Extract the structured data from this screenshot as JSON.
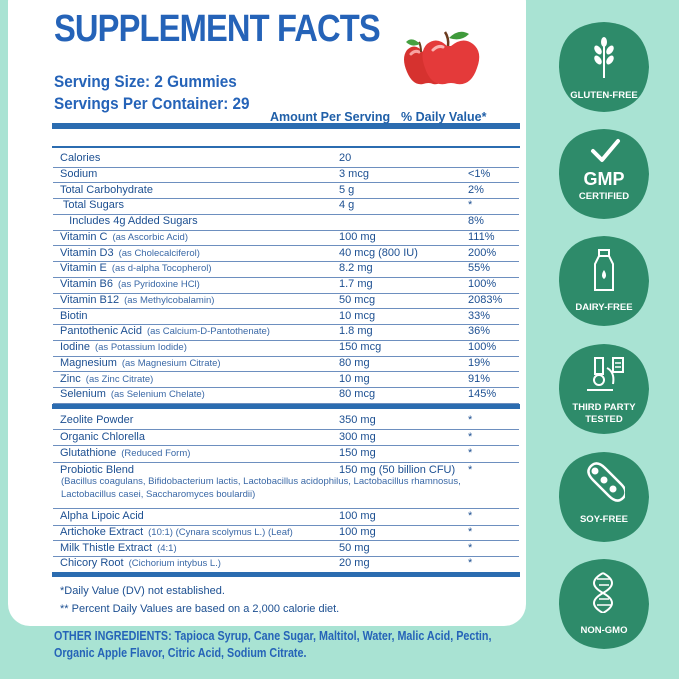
{
  "header": {
    "title": "SUPPLEMENT FACTS",
    "serving_size": "Serving Size: 2 Gummies",
    "servings_per_container": "Servings Per Container: 29"
  },
  "columns": {
    "amount": "Amount Per Serving",
    "dv": "% Daily Value*"
  },
  "rows": [
    {
      "name": "Calories",
      "qualifier": "",
      "amount": "20",
      "dv": ""
    },
    {
      "name": "Sodium",
      "qualifier": "",
      "amount": "3 mcg",
      "dv": "<1%"
    },
    {
      "name": "Total Carbohydrate",
      "qualifier": "",
      "amount": "5 g",
      "dv": "2%"
    },
    {
      "name": " Total Sugars",
      "qualifier": "",
      "amount": "4 g",
      "dv": "*"
    },
    {
      "name": "   Includes 4g Added Sugars",
      "qualifier": "",
      "amount": "",
      "dv": "8%"
    },
    {
      "name": "Vitamin C",
      "qualifier": "(as Ascorbic Acid)",
      "amount": "100 mg",
      "dv": "111%"
    },
    {
      "name": "Vitamin D3",
      "qualifier": "(as Cholecalciferol)",
      "amount": "40 mcg (800 IU)",
      "dv": "200%"
    },
    {
      "name": "Vitamin E",
      "qualifier": "(as d-alpha Tocopherol)",
      "amount": "8.2 mg",
      "dv": "55%"
    },
    {
      "name": "Vitamin B6",
      "qualifier": "(as Pyridoxine HCl)",
      "amount": "1.7 mg",
      "dv": "100%"
    },
    {
      "name": "Vitamin B12",
      "qualifier": "(as Methylcobalamin)",
      "amount": "50 mcg",
      "dv": "2083%"
    },
    {
      "name": "Biotin",
      "qualifier": "",
      "amount": "10 mcg",
      "dv": "33%"
    },
    {
      "name": "Pantothenic Acid",
      "qualifier": "(as Calcium-D-Pantothenate)",
      "amount": "1.8 mg",
      "dv": "36%"
    },
    {
      "name": "Iodine",
      "qualifier": "(as Potassium Iodide)",
      "amount": "150 mcg",
      "dv": "100%"
    },
    {
      "name": "Magnesium",
      "qualifier": "(as Magnesium Citrate)",
      "amount": "80 mg",
      "dv": "19%"
    },
    {
      "name": "Zinc",
      "qualifier": "(as Zinc Citrate)",
      "amount": "10 mg",
      "dv": "91%"
    },
    {
      "name": "Selenium",
      "qualifier": "(as Selenium Chelate)",
      "amount": "80 mcg",
      "dv": "145%"
    }
  ],
  "rows2": [
    {
      "name": "Zeolite Powder",
      "qualifier": "",
      "amount": "350 mg",
      "dv": "*"
    },
    {
      "name": "Organic Chlorella",
      "qualifier": "",
      "amount": "300 mg",
      "dv": "*"
    },
    {
      "name": "Glutathione",
      "qualifier": "(Reduced Form)",
      "amount": "150 mg",
      "dv": "*"
    }
  ],
  "probiotic": {
    "name": "Probiotic Blend",
    "amount": "150 mg (50 billion CFU)",
    "dv": "*",
    "sub_line1": "(Bacillus coagulans, Bifidobacterium lactis, Lactobacillus acidophilus, Lactobacillus rhamnosus,",
    "sub_line2": "Lactobacillus casei, Saccharomyces boulardii)"
  },
  "rows3": [
    {
      "name": "Alpha Lipoic Acid",
      "qualifier": "",
      "amount": "100 mg",
      "dv": "*"
    },
    {
      "name": "Artichoke Extract",
      "qualifier": "(10:1) (Cynara scolymus L.) (Leaf)",
      "amount": "100 mg",
      "dv": "*"
    },
    {
      "name": "Milk Thistle Extract",
      "qualifier": "(4:1)",
      "amount": "50 mg",
      "dv": "*"
    },
    {
      "name": "Chicory Root",
      "qualifier": "(Cichorium intybus L.)",
      "amount": "20 mg",
      "dv": "*"
    }
  ],
  "footnotes": {
    "dv_not_established": "*Daily Value (DV) not established.",
    "percent_note": "** Percent Daily Values are based on a 2,000 calorie diet."
  },
  "other_ingredients": {
    "line1": "OTHER INGREDIENTS: Tapioca Syrup, Cane Sugar, Maltitol, Water, Malic Acid, Pectin,",
    "line2": "Organic Apple Flavor, Citric Acid, Sodium Citrate."
  },
  "badges": [
    {
      "label": "GLUTEN-FREE",
      "icon": "wheat-icon"
    },
    {
      "label": "GMP",
      "label2": "CERTIFIED",
      "icon": "checkmark-icon"
    },
    {
      "label": "DAIRY-FREE",
      "icon": "milk-bottle-icon"
    },
    {
      "label": "THIRD PARTY",
      "label2": "TESTED",
      "icon": "microscope-icon"
    },
    {
      "label": "SOY-FREE",
      "icon": "soybean-icon"
    },
    {
      "label": "NON-GMO",
      "icon": "dna-icon"
    }
  ],
  "colors": {
    "background": "#a9e3d3",
    "badge_green": "#2e8b6a",
    "brand_blue": "#2563b8"
  }
}
